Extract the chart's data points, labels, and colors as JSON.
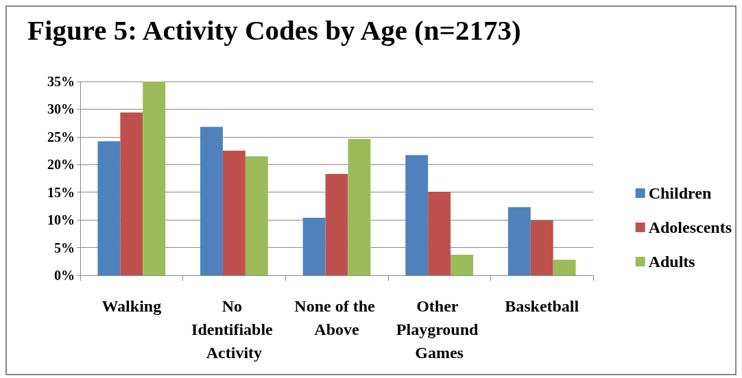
{
  "chart_data": {
    "type": "bar",
    "title": "Figure 5: Activity Codes by Age (n=2173)",
    "categories": [
      "Walking",
      "No Identifiable Activity",
      "None of the Above",
      "Other Playground Games",
      "Basketball"
    ],
    "series": [
      {
        "name": "Children",
        "color": "#4f81bd",
        "values": [
          24.2,
          26.8,
          10.4,
          21.7,
          12.3
        ]
      },
      {
        "name": "Adolescents",
        "color": "#c0504d",
        "values": [
          29.4,
          22.5,
          18.3,
          15.1,
          9.9
        ]
      },
      {
        "name": "Adults",
        "color": "#9bbb59",
        "values": [
          35,
          21.5,
          24.6,
          3.7,
          2.8
        ]
      }
    ],
    "ylim": [
      0,
      35
    ],
    "yticks": [
      {
        "value": 0,
        "label": "0%"
      },
      {
        "value": 5,
        "label": "5%"
      },
      {
        "value": 10,
        "label": "10%"
      },
      {
        "value": 15,
        "label": "15%"
      },
      {
        "value": 20,
        "label": "20%"
      },
      {
        "value": 25,
        "label": "25%"
      },
      {
        "value": 30,
        "label": "30%"
      },
      {
        "value": 35,
        "label": "35%"
      }
    ],
    "grid": "y",
    "legend": "right"
  }
}
